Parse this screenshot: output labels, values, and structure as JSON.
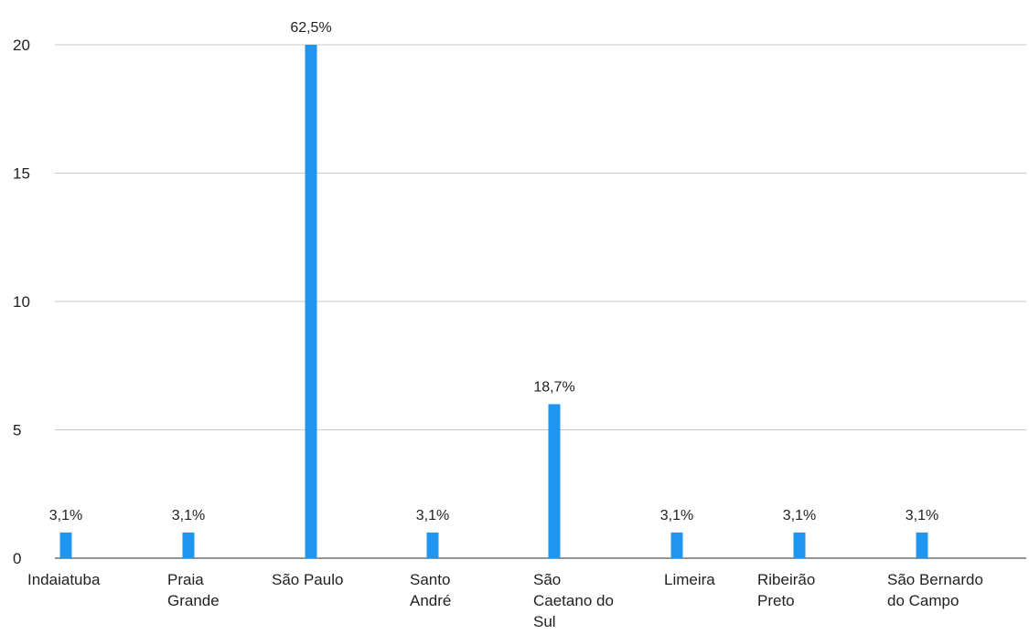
{
  "chart_data": {
    "type": "bar",
    "categories": [
      "Indaiatuba",
      "Praia Grande",
      "São Paulo",
      "Santo André",
      "São Caetano do Sul",
      "Limeira",
      "Ribeirão Preto",
      "São Bernardo do Campo"
    ],
    "category_lines": [
      [
        "Indaiatuba"
      ],
      [
        "Praia",
        "Grande"
      ],
      [
        "São Paulo"
      ],
      [
        "Santo",
        "André"
      ],
      [
        "São",
        "Caetano do",
        "Sul"
      ],
      [
        "Limeira"
      ],
      [
        "Ribeirão",
        "Preto"
      ],
      [
        "São Bernardo",
        "do Campo"
      ]
    ],
    "values": [
      1,
      1,
      20,
      1,
      6,
      1,
      1,
      1
    ],
    "data_labels": [
      "3,1%",
      "3,1%",
      "62,5%",
      "3,1%",
      "18,7%",
      "3,1%",
      "3,1%",
      "3,1%"
    ],
    "y_ticks": [
      0,
      5,
      10,
      15,
      20
    ],
    "ylim": [
      0,
      20
    ],
    "grid": true,
    "legend": "none",
    "bar_color": "#1e96f0",
    "title": "",
    "xlabel": "",
    "ylabel": ""
  }
}
